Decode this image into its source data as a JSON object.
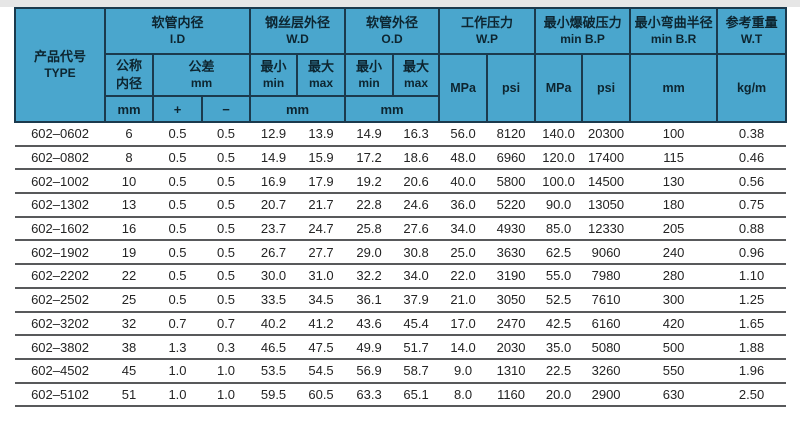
{
  "colors": {
    "page_bg": "#ffffff",
    "top_strip": "#e6e6e6",
    "header_bg": "#4aa6cd",
    "header_border": "#1b3a4d",
    "header_text": "#0d2530",
    "row_line": "#58595b",
    "body_text": "#242424"
  },
  "table": {
    "header": {
      "type": {
        "cn": "产品代号",
        "en": "TYPE"
      },
      "groups": [
        {
          "cn": "软管内径",
          "en": "I.D"
        },
        {
          "cn": "钢丝层外径",
          "en": "W.D"
        },
        {
          "cn": "软管外径",
          "en": "O.D"
        },
        {
          "cn": "工作压力",
          "en": "W.P"
        },
        {
          "cn": "最小爆破压力",
          "en": "min B.P"
        },
        {
          "cn": "最小弯曲半径",
          "en": "min B.R"
        },
        {
          "cn": "参考重量",
          "en": "W.T"
        }
      ],
      "subheader": {
        "nominal": [
          "公称",
          "内径"
        ],
        "tolerance": [
          "公差",
          "mm"
        ],
        "min": [
          "最小",
          "min"
        ],
        "max": [
          "最大",
          "max"
        ],
        "wp_mpa": "MPa",
        "wp_psi": "psi",
        "bp_mpa": "MPa",
        "bp_psi": "psi",
        "br_unit": "mm",
        "wt_unit": "kg/m",
        "row3_mm": "mm",
        "row3_plus": "+",
        "row3_minus": "−",
        "row3_wd_unit": "mm",
        "row3_od_unit": "mm"
      }
    },
    "rows": [
      [
        "602–0602",
        "6",
        "0.5",
        "0.5",
        "12.9",
        "13.9",
        "14.9",
        "16.3",
        "56.0",
        "8120",
        "140.0",
        "20300",
        "100",
        "0.38"
      ],
      [
        "602–0802",
        "8",
        "0.5",
        "0.5",
        "14.9",
        "15.9",
        "17.2",
        "18.6",
        "48.0",
        "6960",
        "120.0",
        "17400",
        "115",
        "0.46"
      ],
      [
        "602–1002",
        "10",
        "0.5",
        "0.5",
        "16.9",
        "17.9",
        "19.2",
        "20.6",
        "40.0",
        "5800",
        "100.0",
        "14500",
        "130",
        "0.56"
      ],
      [
        "602–1302",
        "13",
        "0.5",
        "0.5",
        "20.7",
        "21.7",
        "22.8",
        "24.6",
        "36.0",
        "5220",
        "90.0",
        "13050",
        "180",
        "0.75"
      ],
      [
        "602–1602",
        "16",
        "0.5",
        "0.5",
        "23.7",
        "24.7",
        "25.8",
        "27.6",
        "34.0",
        "4930",
        "85.0",
        "12330",
        "205",
        "0.88"
      ],
      [
        "602–1902",
        "19",
        "0.5",
        "0.5",
        "26.7",
        "27.7",
        "29.0",
        "30.8",
        "25.0",
        "3630",
        "62.5",
        "9060",
        "240",
        "0.96"
      ],
      [
        "602–2202",
        "22",
        "0.5",
        "0.5",
        "30.0",
        "31.0",
        "32.2",
        "34.0",
        "22.0",
        "3190",
        "55.0",
        "7980",
        "280",
        "1.10"
      ],
      [
        "602–2502",
        "25",
        "0.5",
        "0.5",
        "33.5",
        "34.5",
        "36.1",
        "37.9",
        "21.0",
        "3050",
        "52.5",
        "7610",
        "300",
        "1.25"
      ],
      [
        "602–3202",
        "32",
        "0.7",
        "0.7",
        "40.2",
        "41.2",
        "43.6",
        "45.4",
        "17.0",
        "2470",
        "42.5",
        "6160",
        "420",
        "1.65"
      ],
      [
        "602–3802",
        "38",
        "1.3",
        "0.3",
        "46.5",
        "47.5",
        "49.9",
        "51.7",
        "14.0",
        "2030",
        "35.0",
        "5080",
        "500",
        "1.88"
      ],
      [
        "602–4502",
        "45",
        "1.0",
        "1.0",
        "53.5",
        "54.5",
        "56.9",
        "58.7",
        "9.0",
        "1310",
        "22.5",
        "3260",
        "550",
        "1.96"
      ],
      [
        "602–5102",
        "51",
        "1.0",
        "1.0",
        "59.5",
        "60.5",
        "63.3",
        "65.1",
        "8.0",
        "1160",
        "20.0",
        "2900",
        "630",
        "2.50"
      ]
    ]
  }
}
